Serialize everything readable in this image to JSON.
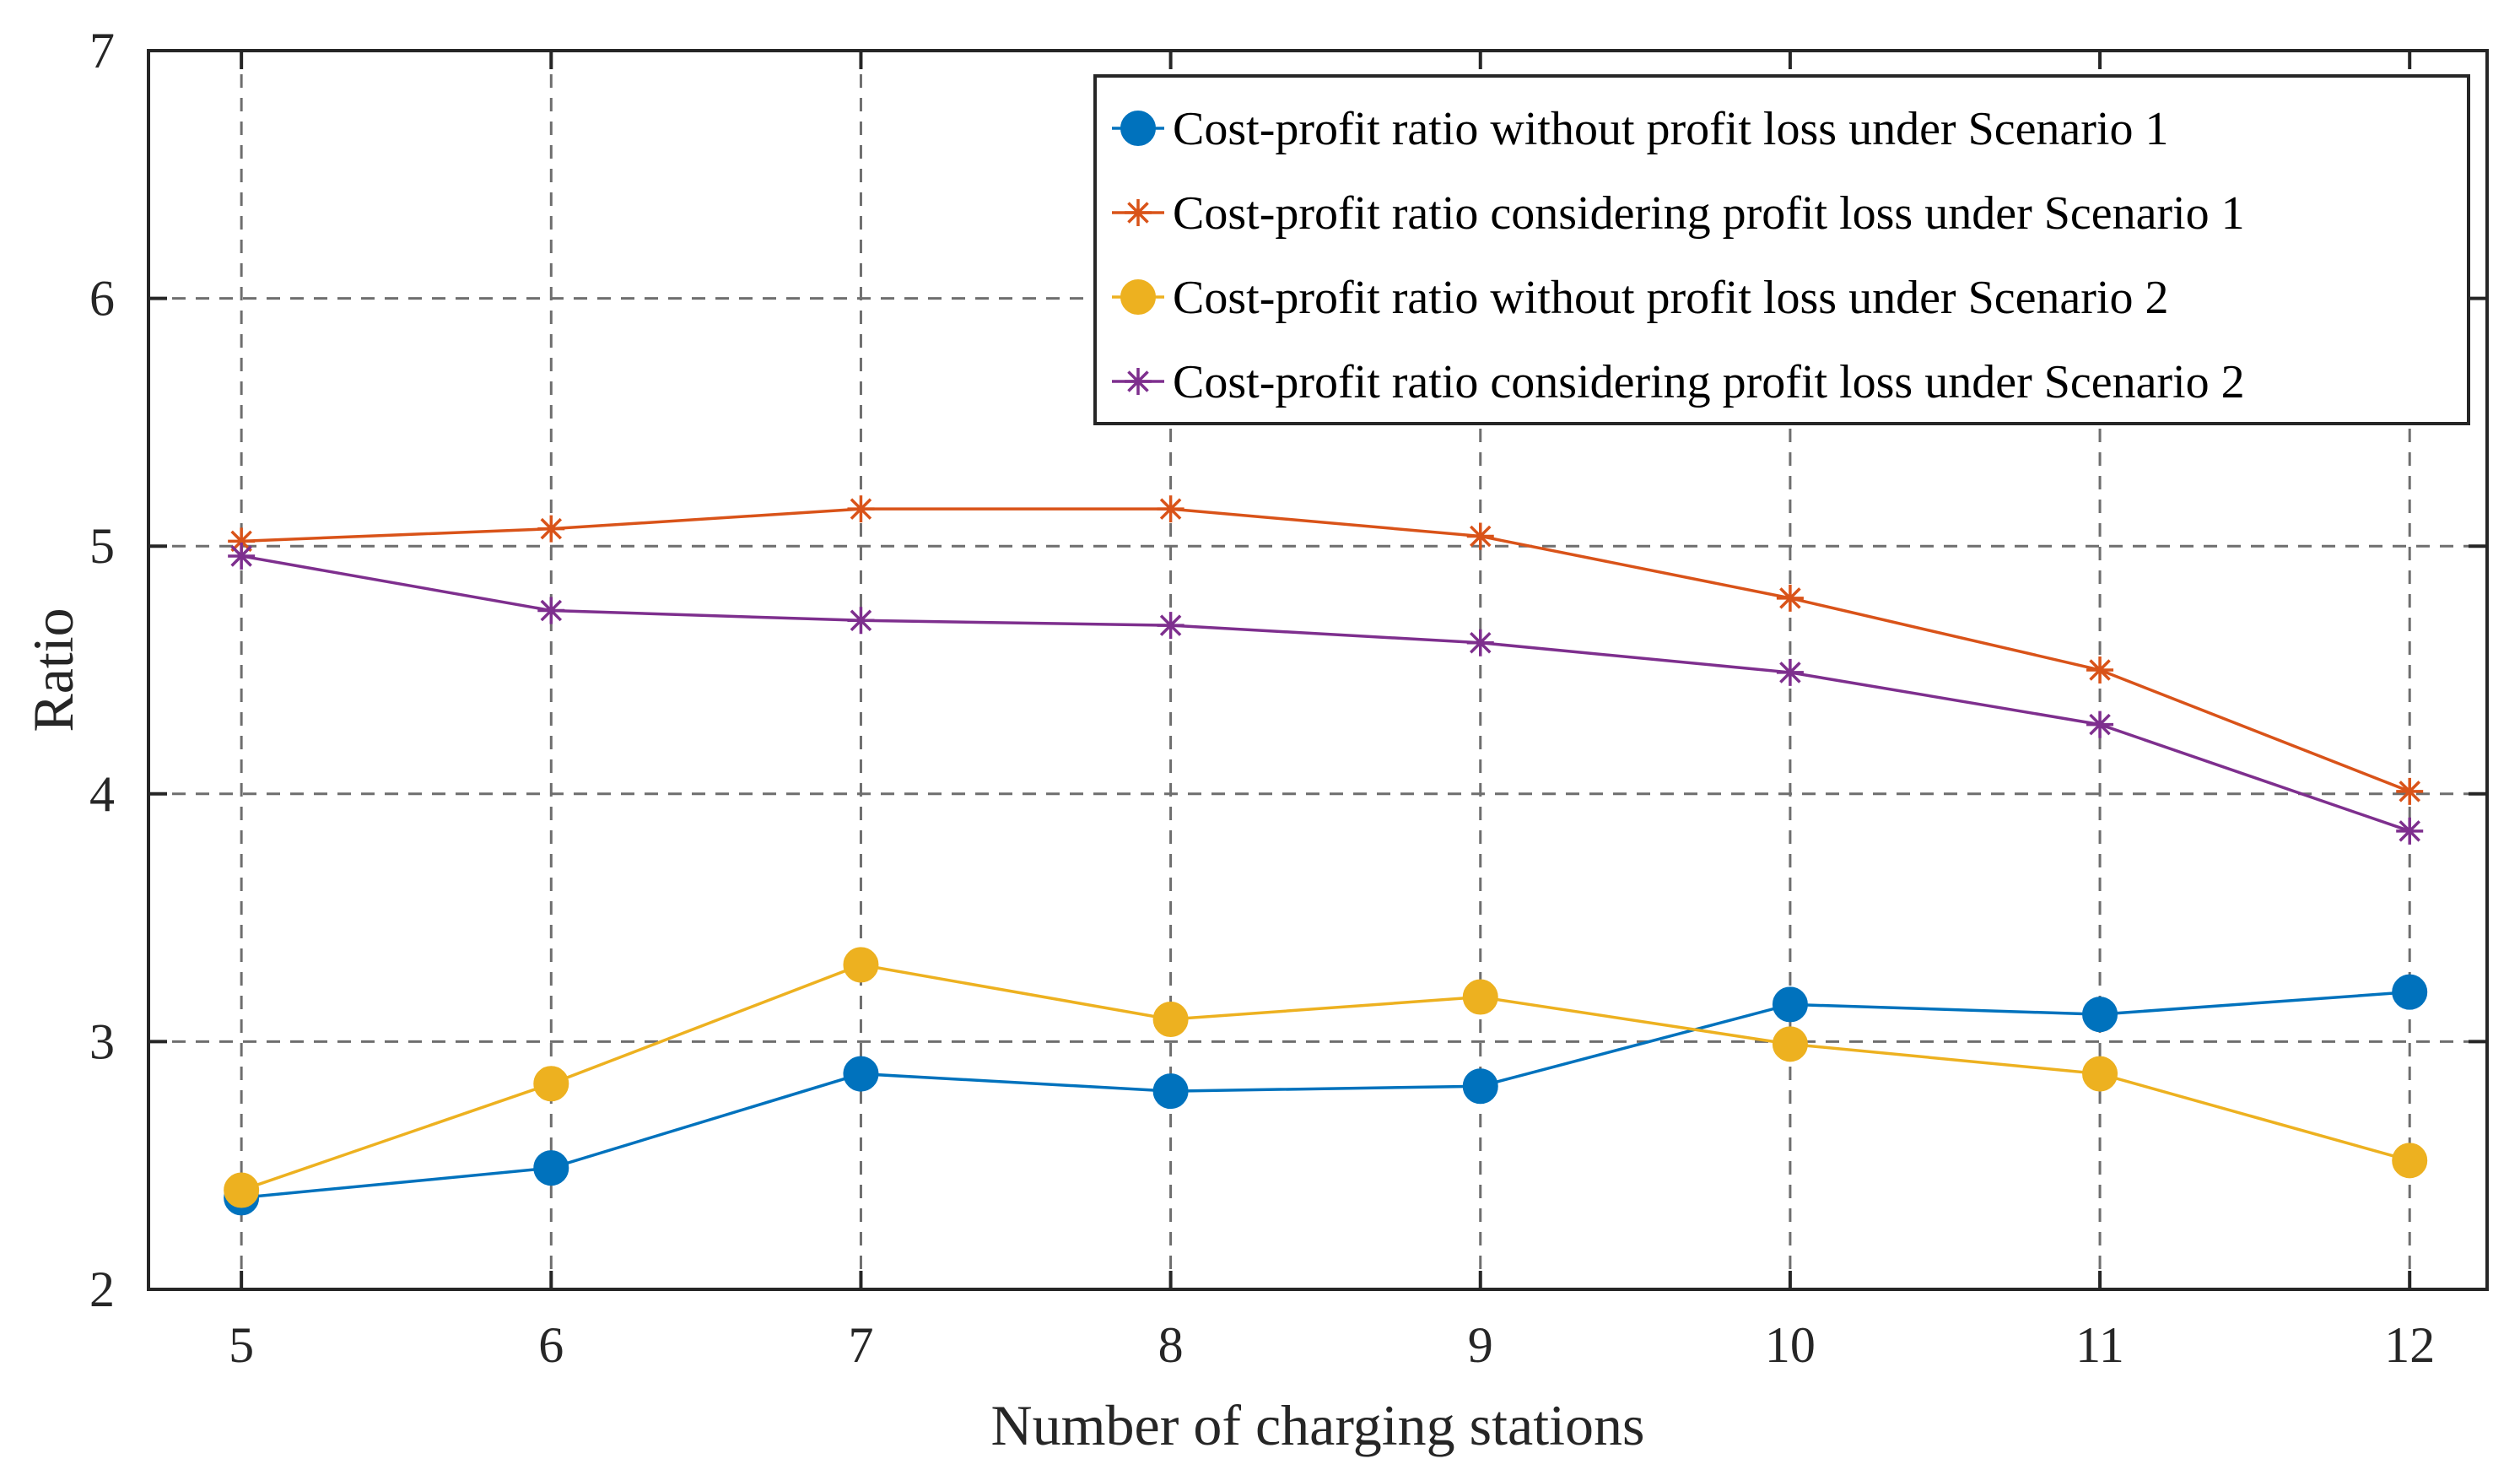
{
  "chart_data": {
    "type": "line",
    "title": "",
    "xlabel": "Number of charging stations",
    "ylabel": "Ratio",
    "x": [
      5,
      6,
      7,
      8,
      9,
      10,
      11,
      12
    ],
    "xticks": [
      "5",
      "6",
      "7",
      "8",
      "9",
      "10",
      "11",
      "12"
    ],
    "xlim": [
      4.7,
      12.25
    ],
    "ylim": [
      2,
      7
    ],
    "yticks": [
      "2",
      "3",
      "4",
      "5",
      "6",
      "7"
    ],
    "grid": true,
    "legend_position": "top-right",
    "series": [
      {
        "name": "Cost-profit ratio without profit loss under Scenario 1",
        "color": "#0072BD",
        "marker": "circle",
        "values": [
          2.37,
          2.49,
          2.87,
          2.8,
          2.82,
          3.15,
          3.11,
          3.2
        ]
      },
      {
        "name": "Cost-profit ratio considering profit loss under Scenario 1",
        "color": "#D95319",
        "marker": "star",
        "values": [
          5.02,
          5.07,
          5.15,
          5.15,
          5.04,
          4.79,
          4.5,
          4.01
        ]
      },
      {
        "name": "Cost-profit ratio without profit loss under Scenario 2",
        "color": "#EDB120",
        "marker": "circle",
        "values": [
          2.4,
          2.83,
          3.31,
          3.09,
          3.18,
          2.99,
          2.87,
          2.52
        ]
      },
      {
        "name": "Cost-profit ratio considering profit loss under Scenario 2",
        "color": "#7E2F8E",
        "marker": "star",
        "values": [
          4.96,
          4.74,
          4.7,
          4.68,
          4.61,
          4.49,
          4.28,
          3.85
        ]
      }
    ]
  }
}
